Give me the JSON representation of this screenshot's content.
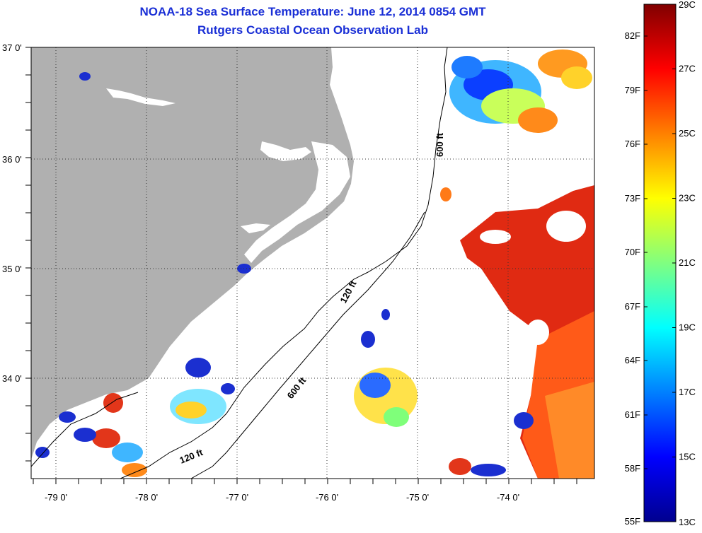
{
  "header": {
    "title": "NOAA-18 Sea Surface Temperature:  June 12, 2014 0854 GMT",
    "subtitle": "Rutgers Coastal Ocean Observation Lab"
  },
  "map": {
    "lat_labels": [
      "37 0'",
      "36 0'",
      "35 0'",
      "34 0'"
    ],
    "lon_labels": [
      "-79 0'",
      "-78 0'",
      "-77 0'",
      "-76 0'",
      "-75 0'",
      "-74 0'"
    ],
    "contour_labels": [
      "600 ft",
      "120 ft",
      "600 ft",
      "120 ft"
    ],
    "colors": {
      "land": "#b0b0b0",
      "ocean": "#ffffff",
      "frame": "#000000",
      "title": "#1a2fd6"
    }
  },
  "colorbar": {
    "fahrenheit": [
      "82F",
      "79F",
      "76F",
      "73F",
      "70F",
      "67F",
      "64F",
      "61F",
      "58F",
      "55F"
    ],
    "celsius": [
      "29C",
      "27C",
      "25C",
      "23C",
      "21C",
      "19C",
      "17C",
      "15C",
      "13C"
    ],
    "gradient": [
      "#00008f",
      "#0000ff",
      "#0080ff",
      "#00ffff",
      "#80ff80",
      "#ffff00",
      "#ff8000",
      "#ff0000",
      "#800000"
    ]
  }
}
